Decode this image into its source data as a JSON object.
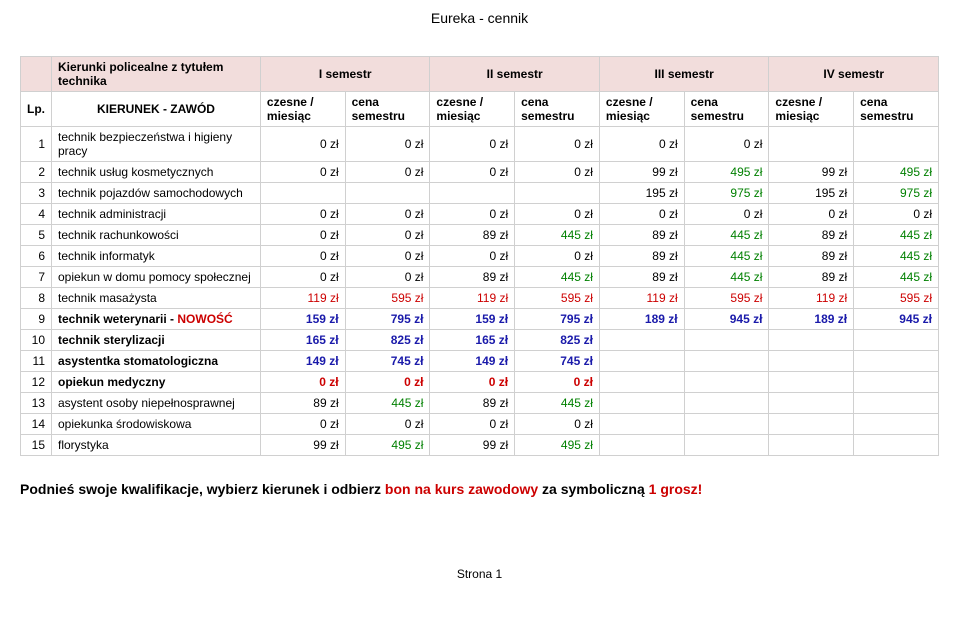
{
  "page_title": "Eureka - cennik",
  "category_header": {
    "title": "Kierunki policealne z tytułem technika",
    "sem1": "I semestr",
    "sem2": "II semestr",
    "sem3": "III semestr",
    "sem4": "IV semestr"
  },
  "column_header": {
    "lp": "Lp.",
    "name": "KIERUNEK - ZAWÓD",
    "czesne": "czesne / miesiąc",
    "cena": "cena semestru"
  },
  "rows": [
    {
      "lp": "1",
      "name": "technik bezpieczeństwa i higieny pracy",
      "name_color": "",
      "v": [
        "0 zł",
        "0 zł",
        "0 zł",
        "0 zł",
        "0 zł",
        "0 zł",
        "",
        ""
      ],
      "colors": [
        "",
        "",
        "",
        "",
        "",
        "",
        "",
        ""
      ]
    },
    {
      "lp": "2",
      "name": "technik usług kosmetycznych",
      "name_color": "",
      "v": [
        "0 zł",
        "0 zł",
        "0 zł",
        "0 zł",
        "99 zł",
        "495 zł",
        "99 zł",
        "495 zł"
      ],
      "colors": [
        "",
        "",
        "",
        "",
        "",
        "green",
        "",
        "green"
      ]
    },
    {
      "lp": "3",
      "name": "technik pojazdów samochodowych",
      "name_color": "",
      "v": [
        "",
        "",
        "",
        "",
        "195 zł",
        "975 zł",
        "195 zł",
        "975 zł"
      ],
      "colors": [
        "",
        "",
        "",
        "",
        "",
        "green",
        "",
        "green"
      ]
    },
    {
      "lp": "4",
      "name": "technik administracji",
      "name_color": "",
      "v": [
        "0 zł",
        "0 zł",
        "0 zł",
        "0 zł",
        "0 zł",
        "0 zł",
        "0 zł",
        "0 zł"
      ],
      "colors": [
        "",
        "",
        "",
        "",
        "",
        "",
        "",
        ""
      ]
    },
    {
      "lp": "5",
      "name": "technik rachunkowości",
      "name_color": "",
      "v": [
        "0 zł",
        "0 zł",
        "89 zł",
        "445 zł",
        "89 zł",
        "445 zł",
        "89 zł",
        "445 zł"
      ],
      "colors": [
        "",
        "",
        "",
        "green",
        "",
        "green",
        "",
        "green"
      ]
    },
    {
      "lp": "6",
      "name": "technik informatyk",
      "name_color": "",
      "v": [
        "0 zł",
        "0 zł",
        "0 zł",
        "0 zł",
        "89 zł",
        "445 zł",
        "89 zł",
        "445 zł"
      ],
      "colors": [
        "",
        "",
        "",
        "",
        "",
        "green",
        "",
        "green"
      ]
    },
    {
      "lp": "7",
      "name": "opiekun w domu pomocy społecznej",
      "name_color": "",
      "v": [
        "0 zł",
        "0 zł",
        "89 zł",
        "445 zł",
        "89 zł",
        "445 zł",
        "89 zł",
        "445 zł"
      ],
      "colors": [
        "",
        "",
        "",
        "green",
        "",
        "green",
        "",
        "green"
      ]
    },
    {
      "lp": "8",
      "name": "technik masażysta",
      "name_color": "",
      "v": [
        "119 zł",
        "595 zł",
        "119 zł",
        "595 zł",
        "119 zł",
        "595 zł",
        "119 zł",
        "595 zł"
      ],
      "colors": [
        "red",
        "red",
        "red",
        "red",
        "red",
        "red",
        "red",
        "red"
      ]
    },
    {
      "lp": "9",
      "name": "technik weterynarii - NOWOŚĆ",
      "name_color": "mixed",
      "v": [
        "159 zł",
        "795 zł",
        "159 zł",
        "795 zł",
        "189 zł",
        "945 zł",
        "189 zł",
        "945 zł"
      ],
      "colors": [
        "blue",
        "blue",
        "blue",
        "blue",
        "blue",
        "blue",
        "blue",
        "blue"
      ]
    },
    {
      "lp": "10",
      "name": "technik sterylizacji",
      "name_color": "",
      "v": [
        "165 zł",
        "825 zł",
        "165 zł",
        "825 zł",
        "",
        "",
        "",
        ""
      ],
      "colors": [
        "blue",
        "blue",
        "blue",
        "blue",
        "",
        "",
        "",
        ""
      ]
    },
    {
      "lp": "11",
      "name": "asystentka stomatologiczna",
      "name_color": "",
      "v": [
        "149 zł",
        "745 zł",
        "149 zł",
        "745 zł",
        "",
        "",
        "",
        ""
      ],
      "colors": [
        "blue",
        "blue",
        "blue",
        "blue",
        "",
        "",
        "",
        ""
      ]
    },
    {
      "lp": "12",
      "name": "opiekun medyczny",
      "name_color": "",
      "v": [
        "0 zł",
        "0 zł",
        "0 zł",
        "0 zł",
        "",
        "",
        "",
        ""
      ],
      "colors": [
        "red",
        "red",
        "red",
        "red",
        "",
        "",
        "",
        ""
      ]
    },
    {
      "lp": "13",
      "name": "asystent osoby niepełnosprawnej",
      "name_color": "",
      "v": [
        "89 zł",
        "445 zł",
        "89 zł",
        "445 zł",
        "",
        "",
        "",
        ""
      ],
      "colors": [
        "",
        "green",
        "",
        "green",
        "",
        "",
        "",
        ""
      ]
    },
    {
      "lp": "14",
      "name": "opiekunka środowiskowa",
      "name_color": "",
      "v": [
        "0 zł",
        "0 zł",
        "0 zł",
        "0 zł",
        "",
        "",
        "",
        ""
      ],
      "colors": [
        "",
        "",
        "",
        "",
        "",
        "",
        "",
        ""
      ]
    },
    {
      "lp": "15",
      "name": "florystyka",
      "name_color": "",
      "v": [
        "99 zł",
        "495 zł",
        "99 zł",
        "495 zł",
        "",
        "",
        "",
        ""
      ],
      "colors": [
        "",
        "green",
        "",
        "green",
        "",
        "",
        "",
        ""
      ]
    }
  ],
  "footer": {
    "part1": "Podnieś swoje kwalifikacje, wybierz kierunek i odbierz ",
    "part2": "bon na kurs zawodowy",
    "part3": " za symboliczną ",
    "part4": "1 grosz!"
  },
  "page_num": "Strona 1",
  "colors": {
    "header_bg": "#f2dddc",
    "border": "#d0d0d0",
    "red": "#cc0000",
    "green": "#008000",
    "blue": "#1a1aaa"
  }
}
